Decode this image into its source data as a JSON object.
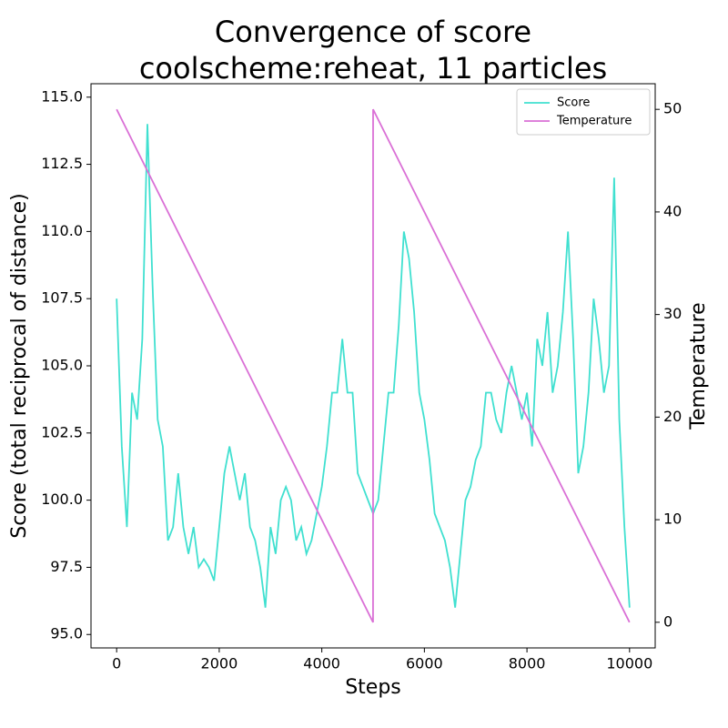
{
  "chart_data": {
    "type": "line",
    "title": "Convergence of score",
    "subtitle": "coolscheme:reheat, 11 particles",
    "x_label": "Steps",
    "y_label": "Score (total reciprocal of distance)",
    "y2_label": "Temperature",
    "xlim": [
      -500,
      10500
    ],
    "xticks": [
      0,
      2000,
      4000,
      6000,
      8000,
      10000
    ],
    "ylim": [
      94.5,
      115.5
    ],
    "yticks": [
      {
        "value": 95,
        "label": "95.0"
      },
      97.5,
      {
        "value": 100,
        "label": "100.0"
      },
      102.5,
      {
        "value": 105,
        "label": "105.0"
      },
      107.5,
      {
        "value": 110,
        "label": "110.0"
      },
      112.5,
      {
        "value": 115,
        "label": "115.0"
      }
    ],
    "y2lim": [
      -2.5,
      52.5
    ],
    "y2ticks": [
      0,
      10,
      20,
      30,
      40,
      50
    ],
    "legend": "upper right",
    "series": [
      {
        "name": "Score",
        "color": "#40e0d0",
        "x": [
          0,
          100,
          200,
          300,
          400,
          500,
          600,
          700,
          800,
          900,
          1000,
          1100,
          1200,
          1300,
          1400,
          1500,
          1600,
          1700,
          1800,
          1900,
          2000,
          2100,
          2200,
          2300,
          2400,
          2500,
          2600,
          2700,
          2800,
          2900,
          3000,
          3100,
          3200,
          3300,
          3400,
          3500,
          3600,
          3700,
          3800,
          3900,
          4000,
          4100,
          4200,
          4300,
          4400,
          4500,
          4600,
          4700,
          4800,
          4900,
          5000,
          5100,
          5200,
          5300,
          5400,
          5500,
          5600,
          5700,
          5800,
          5900,
          6000,
          6100,
          6200,
          6300,
          6400,
          6500,
          6600,
          6700,
          6800,
          6900,
          7000,
          7100,
          7200,
          7300,
          7400,
          7500,
          7600,
          7700,
          7800,
          7900,
          8000,
          8100,
          8200,
          8300,
          8400,
          8500,
          8600,
          8700,
          8800,
          8900,
          9000,
          9100,
          9200,
          9300,
          9400,
          9500,
          9600,
          9700,
          9800,
          9900,
          10000
        ],
        "values": [
          107.5,
          102,
          99,
          104,
          103,
          106,
          114,
          108,
          103,
          102,
          98.5,
          99,
          101,
          99,
          98,
          99,
          97.5,
          97.8,
          97.5,
          97,
          99,
          101,
          102,
          101,
          100,
          101,
          99,
          98.5,
          97.5,
          96,
          99,
          98,
          100,
          100.5,
          100,
          98.5,
          99,
          98,
          98.5,
          99.5,
          100.5,
          102,
          104,
          104,
          106,
          104,
          104,
          101,
          100.5,
          100,
          99.5,
          100,
          102,
          104,
          104,
          106.5,
          110,
          109,
          107,
          104,
          103,
          101.5,
          99.5,
          99,
          98.5,
          97.5,
          96,
          98,
          100,
          100.5,
          101.5,
          102,
          104,
          104,
          103,
          102.5,
          104,
          105,
          104,
          103,
          104,
          102,
          106,
          105,
          107,
          104,
          105,
          107,
          110,
          106,
          101,
          102,
          104,
          107.5,
          106,
          104,
          105,
          112,
          103,
          99,
          96
        ]
      },
      {
        "name": "Temperature",
        "color": "#da70d6",
        "axis": "y2",
        "x": [
          0,
          4999,
          5000,
          9999
        ],
        "values": [
          50,
          0,
          50,
          0
        ]
      }
    ]
  }
}
